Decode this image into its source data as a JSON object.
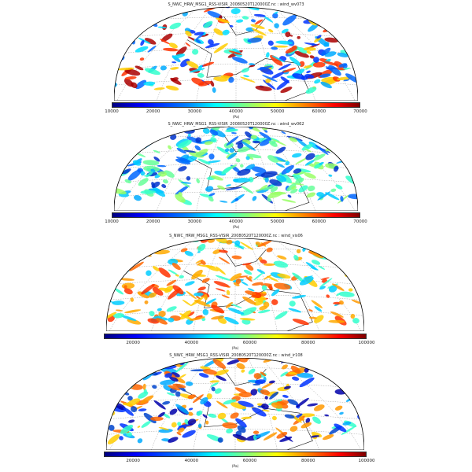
{
  "panels": [
    {
      "title": "S_NWC_HRW_MSG1_RSS-VISIR_20080520T120000Z.nc : wind_wv073",
      "unit": "(Pa)",
      "range": [
        10000,
        70000
      ],
      "ticks": [
        "10000",
        "20000",
        "30000",
        "40000",
        "50000",
        "60000",
        "70000"
      ],
      "colormap": "jet"
    },
    {
      "title": "S_NWC_HRW_MSG1_RSS-VISIR_20080520T120000Z.nc : wind_wv062",
      "unit": "(Pa)",
      "range": [
        10000,
        70000
      ],
      "ticks": [
        "10000",
        "20000",
        "30000",
        "40000",
        "50000",
        "60000",
        "70000"
      ],
      "colormap": "jet"
    },
    {
      "title": "S_NWC_HRW_MSG1_RSS-VISIR_20080520T120000Z.nc : wind_vis06",
      "unit": "(Pa)",
      "range": [
        10000,
        100000
      ],
      "ticks": [
        "20000",
        "40000",
        "60000",
        "80000",
        "100000"
      ],
      "colormap": "jet"
    },
    {
      "title": "S_NWC_HRW_MSG1_RSS-VISIR_20080520T120000Z.nc : wind_ir108",
      "unit": "(Pa)",
      "range": [
        10000,
        100000
      ],
      "ticks": [
        "20000",
        "40000",
        "60000",
        "80000",
        "100000"
      ],
      "colormap": "jet"
    }
  ]
}
